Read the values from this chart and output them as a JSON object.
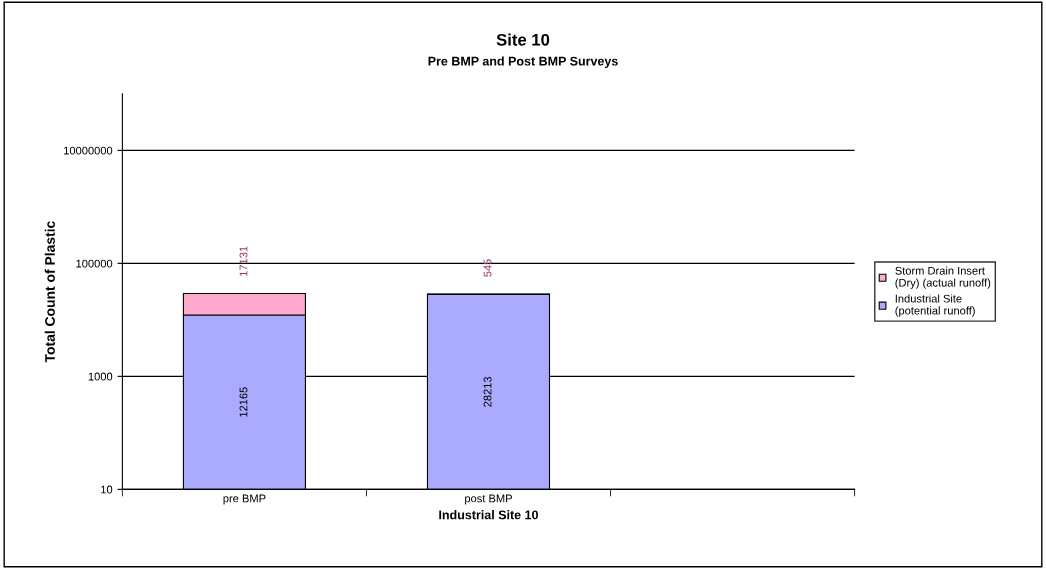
{
  "chart_data": {
    "type": "bar",
    "title": "Site 10",
    "subtitle": "Pre BMP and Post BMP Surveys",
    "xlabel": "Industrial Site 10",
    "ylabel": "Total Count of Plastic",
    "categories": [
      "pre BMP",
      "post BMP",
      null
    ],
    "series": [
      {
        "name": "Industrial Site\n(potential runoff)",
        "color": "#aaaaff",
        "values": [
          12165,
          28213,
          null
        ]
      },
      {
        "name": "Storm Drain Insert\n(Dry) (actual runoff)",
        "color": "#ffaacc",
        "values": [
          17131,
          545,
          null
        ]
      }
    ],
    "stacked": true,
    "log": "y",
    "ylim": [
      10,
      100000000
    ],
    "yticks": [
      10,
      1000,
      100000,
      10000000
    ],
    "grid": "y",
    "legend": "right",
    "data_labels": true
  }
}
